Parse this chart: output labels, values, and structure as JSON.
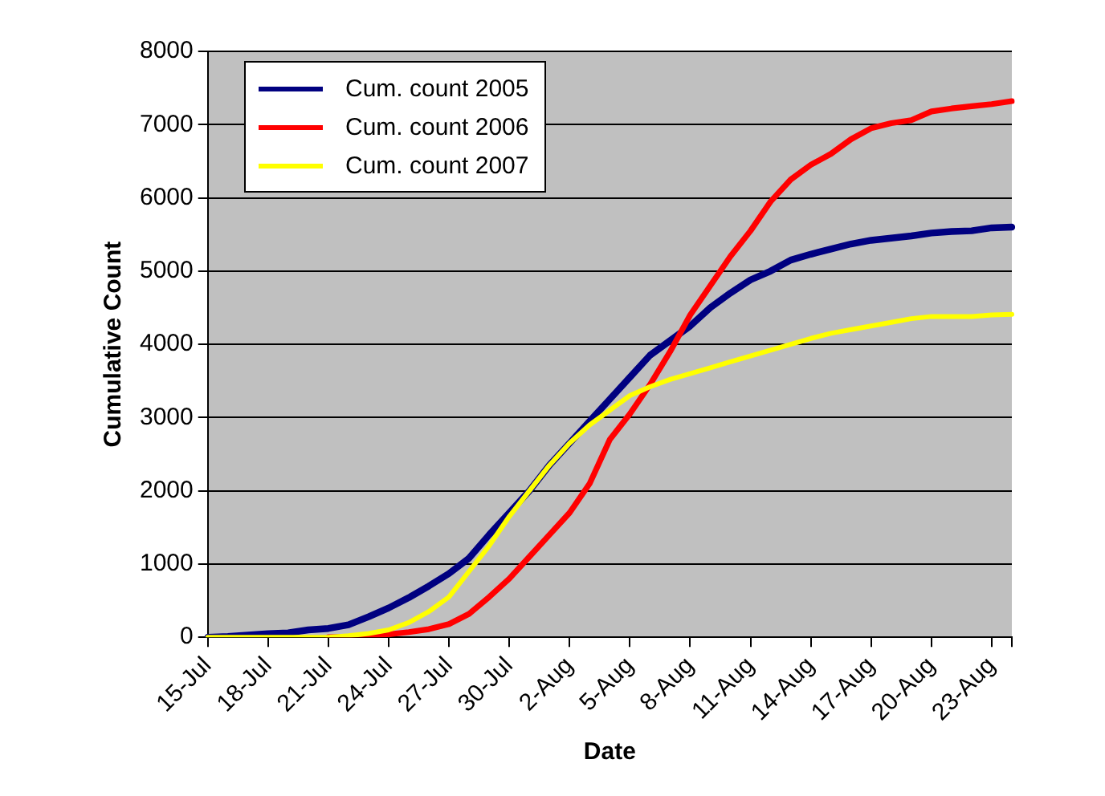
{
  "chart_data": {
    "type": "line",
    "xlabel": "Date",
    "ylabel": "Cumulative Count",
    "categories": [
      "15-Jul",
      null,
      null,
      "18-Jul",
      null,
      null,
      "21-Jul",
      null,
      null,
      "24-Jul",
      null,
      null,
      "27-Jul",
      null,
      null,
      "30-Jul",
      null,
      null,
      "2-Aug",
      null,
      null,
      "5-Aug",
      null,
      null,
      "8-Aug",
      null,
      null,
      "11-Aug",
      null,
      null,
      "14-Aug",
      null,
      null,
      "17-Aug",
      null,
      null,
      "20-Aug",
      null,
      null,
      "23-Aug",
      null
    ],
    "series": [
      {
        "name": "Cum. count 2005",
        "color": "#000080",
        "values": [
          0,
          10,
          30,
          50,
          60,
          100,
          120,
          170,
          280,
          400,
          540,
          700,
          870,
          1080,
          1400,
          1700,
          2000,
          2350,
          2650,
          2950,
          3250,
          3550,
          3850,
          4050,
          4250,
          4500,
          4700,
          4880,
          5000,
          5150,
          5230,
          5300,
          5370,
          5420,
          5450,
          5480,
          5520,
          5540,
          5550,
          5590,
          5600
        ]
      },
      {
        "name": "Cum. count 2006",
        "color": "#ff0000",
        "values": [
          null,
          null,
          null,
          null,
          null,
          null,
          0,
          0,
          20,
          40,
          70,
          110,
          180,
          320,
          550,
          800,
          1100,
          1400,
          1700,
          2100,
          2700,
          3050,
          3450,
          3900,
          4400,
          4800,
          5200,
          5550,
          5950,
          6250,
          6450,
          6600,
          6800,
          6950,
          7020,
          7060,
          7180,
          7220,
          7250,
          7280,
          7320
        ]
      },
      {
        "name": "Cum. count 2007",
        "color": "#ffff00",
        "values": [
          0,
          0,
          0,
          0,
          0,
          0,
          0,
          20,
          50,
          100,
          200,
          350,
          550,
          900,
          1250,
          1650,
          2000,
          2350,
          2650,
          2900,
          3100,
          3300,
          3420,
          3520,
          3600,
          3680,
          3760,
          3840,
          3920,
          4000,
          4080,
          4150,
          4200,
          4250,
          4300,
          4350,
          4380,
          4380,
          4380,
          4400,
          4410
        ]
      }
    ],
    "ylim": [
      0,
      8000
    ],
    "yticks": [
      0,
      1000,
      2000,
      3000,
      4000,
      5000,
      6000,
      7000,
      8000
    ],
    "grid": "y",
    "legend": "top left",
    "marker": "none",
    "line_style": "solid"
  }
}
